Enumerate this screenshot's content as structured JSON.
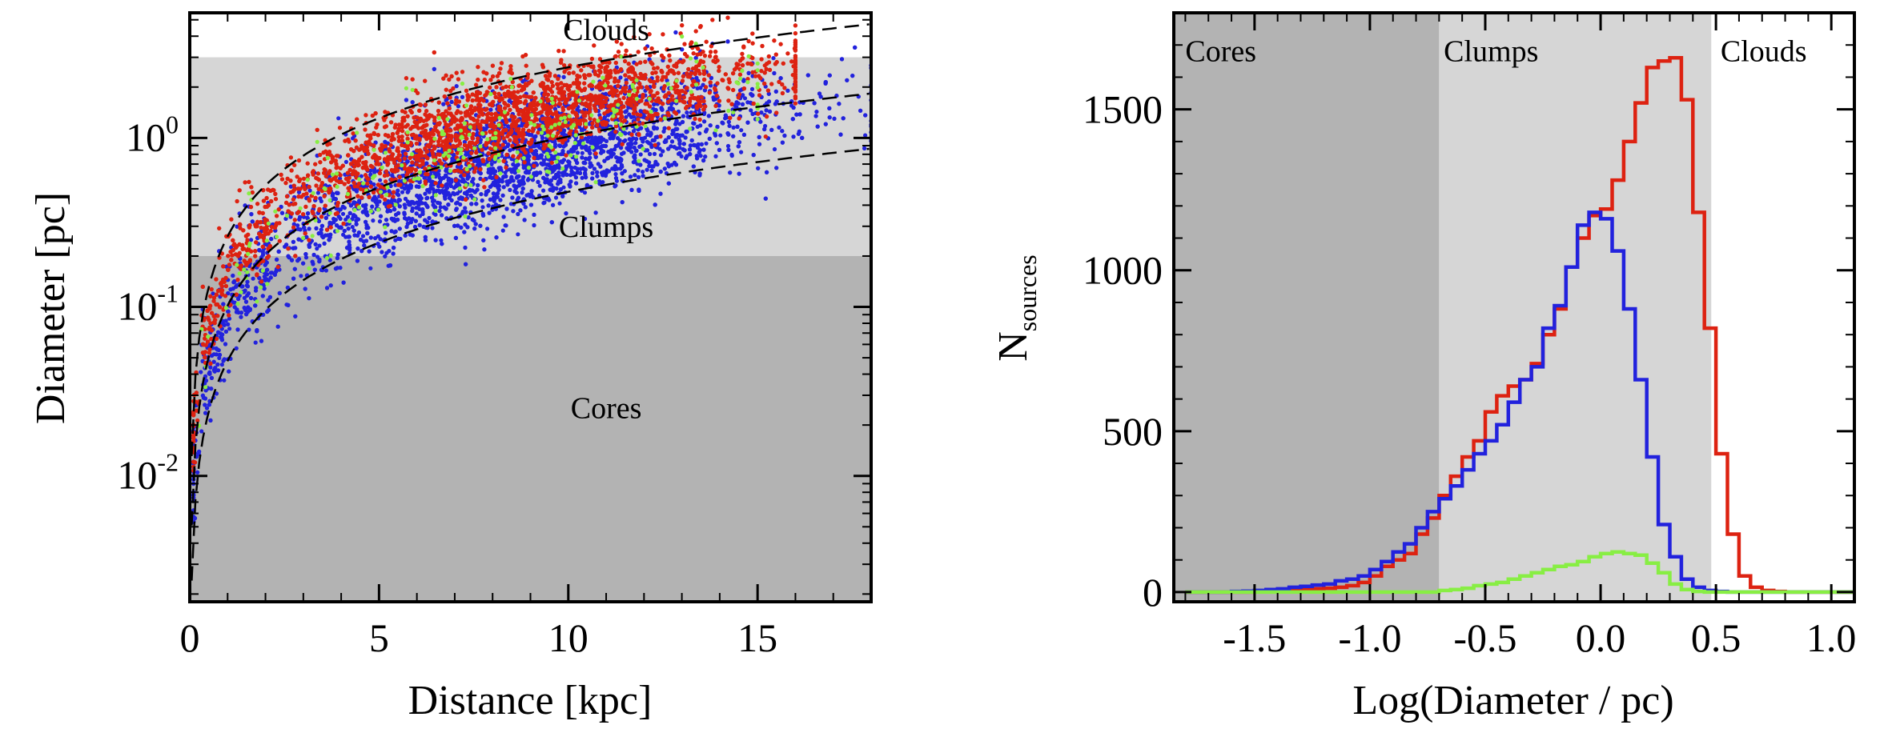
{
  "chart_data": [
    {
      "type": "scatter",
      "xlabel": "Distance [kpc]",
      "ylabel": "Diameter [pc]",
      "xlim": [
        0,
        18
      ],
      "ylim": [
        0.0018,
        5.5
      ],
      "yscale": "log",
      "xticks": [
        0,
        5,
        10,
        15
      ],
      "yticks": [
        {
          "value": 0.01,
          "base": "10",
          "exp": "-2"
        },
        {
          "value": 0.1,
          "base": "10",
          "exp": "-1"
        },
        {
          "value": 1,
          "base": "10",
          "exp": "0"
        }
      ],
      "regions": [
        {
          "name": "Clouds",
          "y_min": 3.0,
          "y_max": 5.5,
          "color": "#ffffff"
        },
        {
          "name": "Clumps",
          "y_min": 0.2,
          "y_max": 3.0,
          "color": "#d6d6d6"
        },
        {
          "name": "Cores",
          "y_min": 0.0018,
          "y_max": 0.2,
          "color": "#b3b3b3"
        }
      ],
      "region_labels": [
        {
          "text": "Clouds",
          "x": 11.0,
          "y": 3.8
        },
        {
          "text": "Clumps",
          "x": 11.0,
          "y": 0.26
        },
        {
          "text": "Cores",
          "x": 11.0,
          "y": 0.022
        }
      ],
      "reference_curves": [
        {
          "angular_size_arcmin": 0.9
        },
        {
          "angular_size_arcmin": 0.35
        },
        {
          "angular_size_arcmin": 0.165
        }
      ],
      "series": [
        {
          "color": "#2222dd",
          "count": 5200,
          "distance_range": [
            0.1,
            18
          ],
          "log_offset_mean": -0.25,
          "log_offset_sd": 0.17
        },
        {
          "color": "#dd2211",
          "count": 4800,
          "distance_range": [
            0.1,
            16
          ],
          "log_offset_mean": 0.0,
          "log_offset_sd": 0.13
        },
        {
          "color": "#88ee44",
          "count": 250,
          "distance_range": [
            0.1,
            15
          ],
          "log_offset_mean": -0.12,
          "log_offset_sd": 0.15
        }
      ]
    },
    {
      "type": "histogram",
      "xlabel": "Log(Diameter / pc)",
      "ylabel": {
        "main": "N",
        "sub": "sources"
      },
      "xlim": [
        -1.85,
        1.1
      ],
      "ylim": [
        -30,
        1800
      ],
      "xticks": [
        {
          "value": -1.5,
          "label": "-1.5"
        },
        {
          "value": -1.0,
          "label": "-1.0"
        },
        {
          "value": -0.5,
          "label": "-0.5"
        },
        {
          "value": 0.0,
          "label": "0.0"
        },
        {
          "value": 0.5,
          "label": "0.5"
        },
        {
          "value": 1.0,
          "label": "1.0"
        }
      ],
      "yticks": [
        0,
        500,
        1000,
        1500
      ],
      "regions": [
        {
          "name": "Cores",
          "x_min": -1.85,
          "x_max": -0.7,
          "color": "#b3b3b3"
        },
        {
          "name": "Clumps",
          "x_min": -0.7,
          "x_max": 0.48,
          "color": "#d6d6d6"
        },
        {
          "name": "Clouds",
          "x_min": 0.48,
          "x_max": 1.1,
          "color": "#ffffff"
        }
      ],
      "region_labels": [
        {
          "text": "Cores",
          "x": -1.8,
          "y": 1650
        },
        {
          "text": "Clumps",
          "x": -0.68,
          "y": 1650
        },
        {
          "text": "Clouds",
          "x": 0.52,
          "y": 1650
        }
      ],
      "bin_start": -1.8,
      "bin_width": 0.05,
      "series": [
        {
          "color": "#dd2211",
          "values": [
            0,
            0,
            0,
            0,
            0,
            0,
            2,
            2,
            3,
            5,
            8,
            10,
            12,
            15,
            20,
            30,
            50,
            80,
            100,
            120,
            180,
            230,
            300,
            360,
            420,
            470,
            560,
            610,
            640,
            660,
            710,
            800,
            880,
            1010,
            1100,
            1170,
            1190,
            1280,
            1400,
            1520,
            1630,
            1650,
            1660,
            1530,
            1180,
            820,
            430,
            180,
            50,
            15,
            5,
            2,
            0,
            0,
            0,
            0,
            0,
            0,
            0
          ]
        },
        {
          "color": "#2222dd",
          "values": [
            0,
            0,
            0,
            0,
            2,
            3,
            5,
            8,
            10,
            15,
            18,
            22,
            25,
            35,
            40,
            50,
            70,
            95,
            125,
            150,
            200,
            250,
            290,
            330,
            380,
            430,
            470,
            520,
            590,
            660,
            700,
            820,
            890,
            1010,
            1140,
            1180,
            1160,
            1060,
            880,
            660,
            420,
            210,
            110,
            40,
            15,
            5,
            2,
            0,
            0,
            0,
            0,
            0,
            0,
            0,
            0,
            0,
            0,
            0,
            0
          ]
        },
        {
          "color": "#88ee44",
          "values": [
            0,
            0,
            0,
            0,
            0,
            0,
            0,
            0,
            0,
            0,
            0,
            0,
            0,
            0,
            0,
            0,
            0,
            0,
            0,
            0,
            0,
            0,
            5,
            8,
            12,
            20,
            25,
            30,
            40,
            50,
            60,
            70,
            80,
            85,
            95,
            110,
            120,
            125,
            120,
            115,
            90,
            60,
            25,
            8,
            2,
            0,
            0,
            0,
            0,
            0,
            0,
            0,
            0,
            0,
            0,
            0,
            0,
            0,
            0
          ]
        }
      ]
    }
  ]
}
